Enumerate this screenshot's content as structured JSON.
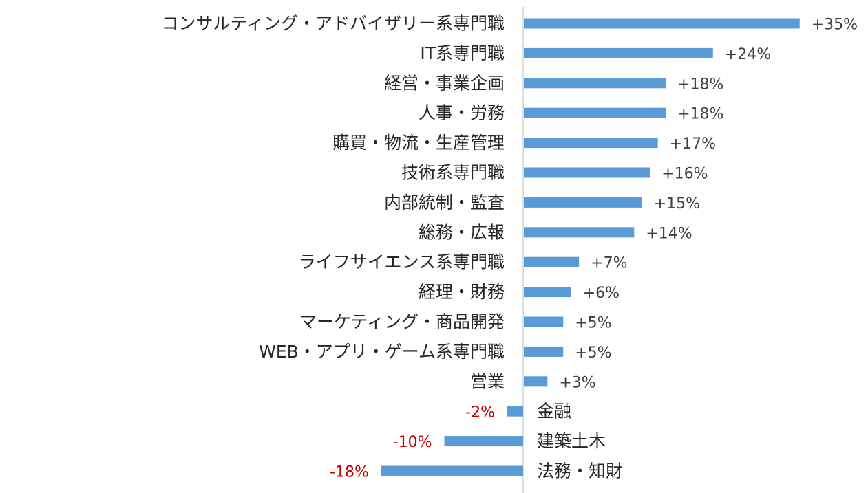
{
  "chart_data": {
    "type": "bar",
    "orientation": "horizontal",
    "title": "",
    "xlabel": "",
    "ylabel": "",
    "grid": false,
    "legend": "none",
    "bar_color": "#5b9bd5",
    "negative_label_color": "#c00000",
    "xlim": [
      -20,
      40
    ],
    "categories": [
      "コンサルティング・アドバイザリー系専門職",
      "IT系専門職",
      "経営・事業企画",
      "人事・労務",
      "購買・物流・生産管理",
      "技術系専門職",
      "内部統制・監査",
      "総務・広報",
      "ライフサイエンス系専門職",
      "経理・財務",
      "マーケティング・商品開発",
      "WEB・アプリ・ゲーム系専門職",
      "営業",
      "金融",
      "建築土木",
      "法務・知財"
    ],
    "values": [
      35,
      24,
      18,
      18,
      17,
      16,
      15,
      14,
      7,
      6,
      5,
      5,
      3,
      -2,
      -10,
      -18
    ],
    "value_labels": [
      "+35%",
      "+24%",
      "+18%",
      "+18%",
      "+17%",
      "+16%",
      "+15%",
      "+14%",
      "+7%",
      "+6%",
      "+5%",
      "+5%",
      "+3%",
      "-2%",
      "-10%",
      "-18%"
    ]
  }
}
